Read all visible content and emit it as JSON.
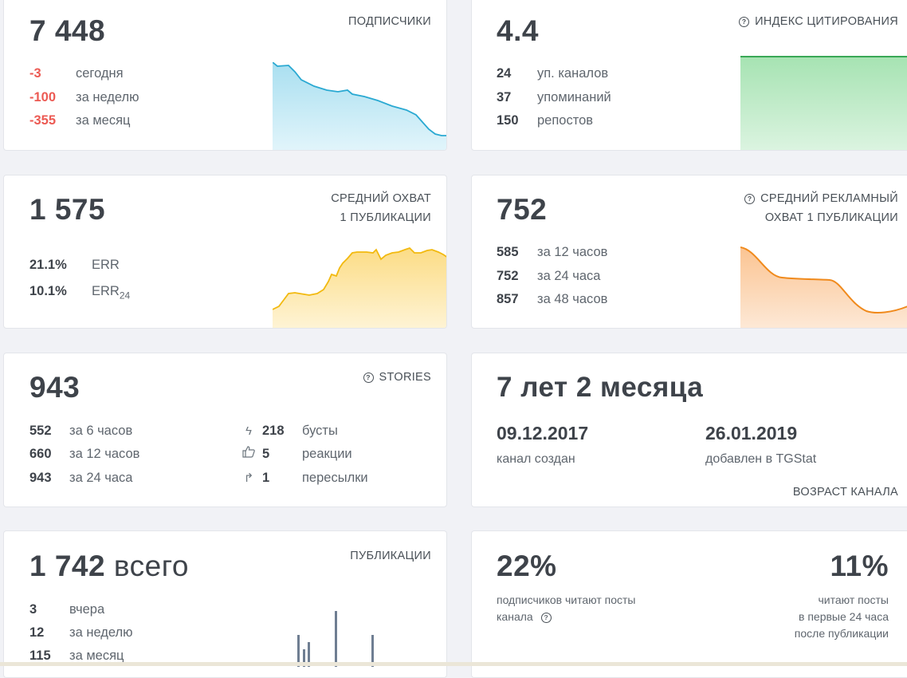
{
  "subscribers": {
    "value": "7 448",
    "label": "ПОДПИСЧИКИ",
    "rows": [
      {
        "value": "-3",
        "text": "сегодня"
      },
      {
        "value": "-100",
        "text": "за неделю"
      },
      {
        "value": "-355",
        "text": "за месяц"
      }
    ]
  },
  "citation": {
    "value": "4.4",
    "label": "ИНДЕКС ЦИТИРОВАНИЯ",
    "rows": [
      {
        "value": "24",
        "text": "уп. каналов"
      },
      {
        "value": "37",
        "text": "упоминаний"
      },
      {
        "value": "150",
        "text": "репостов"
      }
    ]
  },
  "reach": {
    "value": "1 575",
    "label_line1": "СРЕДНИЙ ОХВАТ",
    "label_line2": "1 ПУБЛИКАЦИИ",
    "err": {
      "value": "21.1%",
      "text": "ERR"
    },
    "err24": {
      "value": "10.1%",
      "text": "ERR",
      "sub": "24"
    }
  },
  "ad_reach": {
    "value": "752",
    "label_line1": "СРЕДНИЙ РЕКЛАМНЫЙ",
    "label_line2": "ОХВАТ 1 ПУБЛИКАЦИИ",
    "rows": [
      {
        "value": "585",
        "text": "за 12 часов"
      },
      {
        "value": "752",
        "text": "за 24 часа"
      },
      {
        "value": "857",
        "text": "за 48 часов"
      }
    ]
  },
  "stories": {
    "value": "943",
    "label": "STORIES",
    "rows": [
      {
        "value": "552",
        "text": "за 6 часов"
      },
      {
        "value": "660",
        "text": "за 12 часов"
      },
      {
        "value": "943",
        "text": "за 24 часа"
      }
    ],
    "stats": [
      {
        "icon": "lightning-icon",
        "value": "218",
        "text": "бусты"
      },
      {
        "icon": "thumbs-up-icon",
        "value": "5",
        "text": "реакции"
      },
      {
        "icon": "forward-icon",
        "value": "1",
        "text": "пересылки"
      }
    ]
  },
  "age": {
    "value": "7 лет 2 месяца",
    "created_date": "09.12.2017",
    "created_text": "канал создан",
    "added_date": "26.01.2019",
    "added_text": "добавлен в TGStat",
    "label": "ВОЗРАСТ КАНАЛА"
  },
  "publications": {
    "value": "1 742",
    "value_suffix": "всего",
    "label": "ПУБЛИКАЦИИ",
    "rows": [
      {
        "value": "3",
        "text": "вчера"
      },
      {
        "value": "12",
        "text": "за неделю"
      },
      {
        "value": "115",
        "text": "за месяц"
      }
    ]
  },
  "readers": {
    "left_value": "22%",
    "left_line1": "подписчиков читают посты",
    "left_line2": "канала",
    "right_value": "11%",
    "right_line1": "читают посты",
    "right_line2": "в первые 24 часа",
    "right_line3": "после публикации"
  },
  "colors": {
    "subscribers_line": "#2aa9d2",
    "citation_line": "#3aa856",
    "reach_line": "#f2b90f",
    "ad_reach_line": "#f08a1c",
    "bars": "#6f7e92"
  }
}
